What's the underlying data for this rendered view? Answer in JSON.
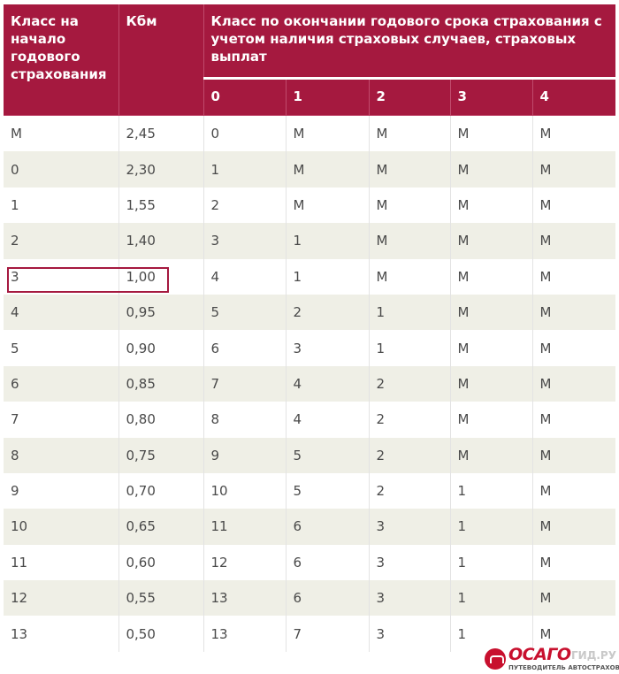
{
  "header": {
    "col_class_start": "Класс на начало годового страхования",
    "col_kbm": "Кбм",
    "group_title": "Класс по окончании годового срока страхования с учетом наличия страховых случаев, страховых выплат",
    "sub": [
      "0",
      "1",
      "2",
      "3",
      "4"
    ]
  },
  "rows": [
    [
      "М",
      "2,45",
      "0",
      "М",
      "М",
      "М",
      "М"
    ],
    [
      "0",
      "2,30",
      "1",
      "М",
      "М",
      "М",
      "М"
    ],
    [
      "1",
      "1,55",
      "2",
      "М",
      "М",
      "М",
      "М"
    ],
    [
      "2",
      "1,40",
      "3",
      "1",
      "М",
      "М",
      "М"
    ],
    [
      "3",
      "1,00",
      "4",
      "1",
      "М",
      "М",
      "М"
    ],
    [
      "4",
      "0,95",
      "5",
      "2",
      "1",
      "М",
      "М"
    ],
    [
      "5",
      "0,90",
      "6",
      "3",
      "1",
      "М",
      "М"
    ],
    [
      "6",
      "0,85",
      "7",
      "4",
      "2",
      "М",
      "М"
    ],
    [
      "7",
      "0,80",
      "8",
      "4",
      "2",
      "М",
      "М"
    ],
    [
      "8",
      "0,75",
      "9",
      "5",
      "2",
      "М",
      "М"
    ],
    [
      "9",
      "0,70",
      "10",
      "5",
      "2",
      "1",
      "М"
    ],
    [
      "10",
      "0,65",
      "11",
      "6",
      "3",
      "1",
      "М"
    ],
    [
      "11",
      "0,60",
      "12",
      "6",
      "3",
      "1",
      "М"
    ],
    [
      "12",
      "0,55",
      "13",
      "6",
      "3",
      "1",
      "М"
    ],
    [
      "13",
      "0,50",
      "13",
      "7",
      "3",
      "1",
      "М"
    ]
  ],
  "logo": {
    "word": "ОСАГО",
    "domain": "ГИД.РУ",
    "tagline": "ПУТЕВОДИТЕЛЬ АВТОСТРАХОВАНИЯ"
  },
  "colors": {
    "header_bg": "#a5193f",
    "stripe": "#efefe6",
    "highlight": "#a5193f",
    "brand": "#c8102e"
  }
}
